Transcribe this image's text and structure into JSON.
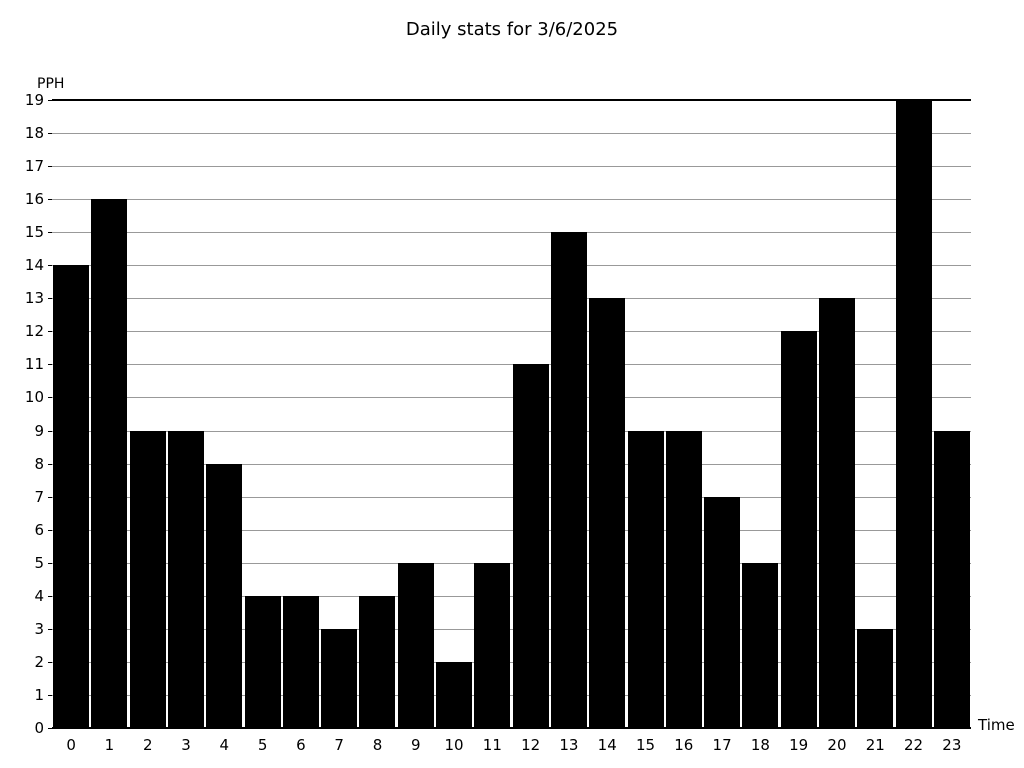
{
  "chart_data": {
    "type": "bar",
    "title": "Daily stats for 3/6/2025",
    "xlabel": "Time",
    "ylabel": "PPH",
    "categories": [
      "0",
      "1",
      "2",
      "3",
      "4",
      "5",
      "6",
      "7",
      "8",
      "9",
      "10",
      "11",
      "12",
      "13",
      "14",
      "15",
      "16",
      "17",
      "18",
      "19",
      "20",
      "21",
      "22",
      "23"
    ],
    "values": [
      14,
      16,
      9,
      9,
      8,
      4,
      4,
      3,
      4,
      5,
      2,
      5,
      11,
      15,
      13,
      9,
      9,
      7,
      5,
      12,
      13,
      3,
      19,
      9
    ],
    "ylim": [
      0,
      19
    ],
    "ytick_step": 1,
    "grid": true,
    "legend": "none",
    "bar_color": "#000000",
    "gridline_color": "#999999",
    "axis_color": "#000000",
    "background_color": "#ffffff"
  }
}
